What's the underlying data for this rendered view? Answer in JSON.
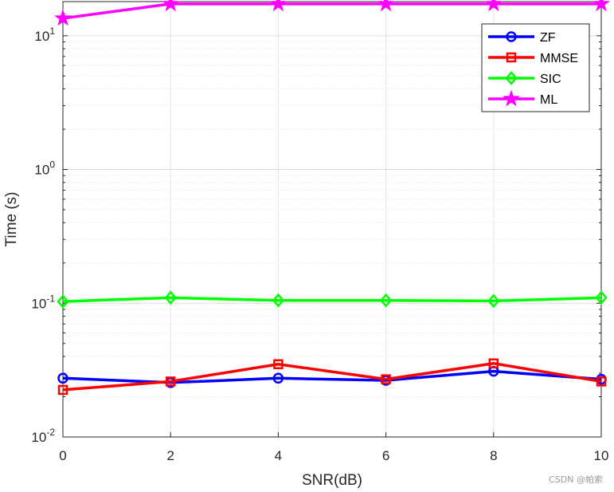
{
  "chart_data": {
    "type": "line",
    "yscale": "log",
    "xlabel": "SNR(dB)",
    "ylabel": "Time (s)",
    "x": [
      0,
      2,
      4,
      6,
      8,
      10
    ],
    "xlim": [
      0,
      10
    ],
    "ylim": [
      0.01,
      18
    ],
    "grid": true,
    "legend_position": "top-right",
    "x_ticks": [
      "0",
      "2",
      "4",
      "6",
      "8",
      "10"
    ],
    "y_ticks": [
      {
        "value": 10,
        "base": "10",
        "exp": "1"
      },
      {
        "value": 1,
        "base": "10",
        "exp": "0"
      },
      {
        "value": 0.1,
        "base": "10",
        "exp": "-1"
      },
      {
        "value": 0.01,
        "base": "10",
        "exp": "-2"
      }
    ],
    "series": [
      {
        "name": "ZF",
        "color": "#0000ff",
        "marker": "circle",
        "values": [
          0.0275,
          0.0255,
          0.0275,
          0.0265,
          0.031,
          0.027
        ]
      },
      {
        "name": "MMSE",
        "color": "#ff0000",
        "marker": "square",
        "values": [
          0.0225,
          0.026,
          0.035,
          0.027,
          0.0355,
          0.026
        ]
      },
      {
        "name": "SIC",
        "color": "#00ff00",
        "marker": "diamond",
        "values": [
          0.103,
          0.11,
          0.105,
          0.105,
          0.104,
          0.11
        ]
      },
      {
        "name": "ML",
        "color": "#ff00ff",
        "marker": "star",
        "values": [
          13.5,
          17.3,
          17.3,
          17.3,
          17.3,
          17.3
        ]
      }
    ]
  },
  "watermark": "CSDN @帕索"
}
